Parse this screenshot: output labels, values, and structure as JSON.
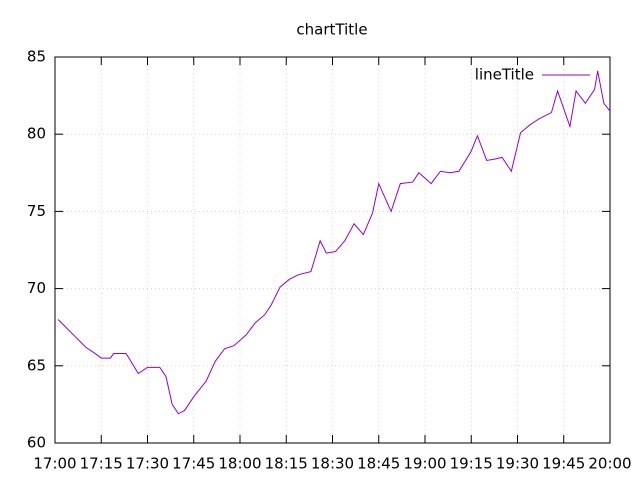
{
  "chart_data": {
    "type": "line",
    "title": "chartTitle",
    "x": [
      "17:01",
      "17:03",
      "17:06",
      "17:10",
      "17:13",
      "17:15",
      "17:18",
      "17:19",
      "17:23",
      "17:24",
      "17:27",
      "17:30",
      "17:34",
      "17:36",
      "17:38",
      "17:40",
      "17:42",
      "17:45",
      "17:49",
      "17:52",
      "17:55",
      "17:58",
      "18:02",
      "18:05",
      "18:08",
      "18:10",
      "18:13",
      "18:16",
      "18:19",
      "18:23",
      "18:26",
      "18:28",
      "18:31",
      "18:34",
      "18:37",
      "18:40",
      "18:43",
      "18:45",
      "18:49",
      "18:52",
      "18:56",
      "18:58",
      "19:02",
      "19:05",
      "19:08",
      "19:11",
      "19:15",
      "19:17",
      "19:20",
      "19:23",
      "19:25",
      "19:28",
      "19:31",
      "19:34",
      "19:37",
      "19:41",
      "19:43",
      "19:47",
      "19:49",
      "19:52",
      "19:55",
      "19:56",
      "19:58",
      "20:00"
    ],
    "series": [
      {
        "name": "lineTitle",
        "color": "#9400d3",
        "values": [
          68.0,
          67.6,
          67.0,
          66.2,
          65.8,
          65.5,
          65.5,
          65.8,
          65.8,
          65.5,
          64.5,
          64.9,
          64.9,
          64.3,
          62.5,
          61.9,
          62.1,
          63.0,
          64.0,
          65.3,
          66.1,
          66.3,
          67.0,
          67.8,
          68.3,
          68.9,
          70.1,
          70.6,
          70.9,
          71.1,
          73.1,
          72.3,
          72.4,
          73.1,
          74.2,
          73.5,
          74.9,
          76.8,
          75.0,
          76.8,
          76.9,
          77.5,
          76.8,
          77.6,
          77.5,
          77.6,
          78.9,
          79.9,
          78.3,
          78.4,
          78.5,
          77.6,
          80.1,
          80.6,
          81.0,
          81.4,
          82.8,
          80.5,
          82.8,
          82.0,
          82.9,
          84.1,
          82.0,
          81.5
        ]
      }
    ],
    "xlim": [
      "17:00",
      "20:00"
    ],
    "xticks": [
      "17:00",
      "17:15",
      "17:30",
      "17:45",
      "18:00",
      "18:15",
      "18:30",
      "18:45",
      "19:00",
      "19:15",
      "19:30",
      "19:45",
      "20:00"
    ],
    "ylim": [
      60,
      85
    ],
    "yticks": [
      60,
      65,
      70,
      75,
      80,
      85
    ],
    "grid": true,
    "legend": "top-right"
  }
}
